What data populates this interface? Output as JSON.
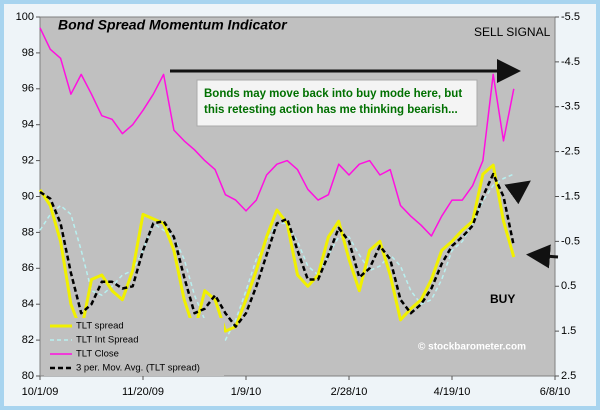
{
  "chart_data": {
    "type": "line",
    "title": "Bond Spread Momentum Indicator",
    "annotations": [
      "SELL SIGNAL",
      "BUY",
      "Bonds may move back into buy mode here, but",
      "this retesting action has me thinking bearish...",
      "© stockbarometer.com"
    ],
    "x": [
      0,
      5,
      10,
      15,
      20,
      25,
      30,
      35,
      40,
      45,
      50,
      55,
      60,
      65,
      70,
      75,
      80,
      85,
      90,
      95,
      100,
      105,
      110,
      115,
      120,
      125,
      130,
      135,
      140,
      145,
      150,
      155,
      160,
      165,
      170,
      175,
      180,
      185,
      190,
      195,
      200,
      205,
      210,
      215,
      220,
      225,
      230
    ],
    "xlim": [
      0,
      250
    ],
    "xticks": [
      {
        "value": 0,
        "label": "10/1/09"
      },
      {
        "value": 50,
        "label": "11/20/09"
      },
      {
        "value": 100,
        "label": "1/9/10"
      },
      {
        "value": 150,
        "label": "2/28/10"
      },
      {
        "value": 200,
        "label": "4/19/10"
      },
      {
        "value": 250,
        "label": "6/8/10"
      }
    ],
    "ylim": [
      80,
      100
    ],
    "yticks": [
      80,
      82,
      84,
      86,
      88,
      90,
      92,
      94,
      96,
      98,
      100
    ],
    "y2lim": [
      2.5,
      -5.5
    ],
    "y2ticks": [
      2.5,
      1.5,
      0.5,
      -0.5,
      -1.5,
      -2.5,
      -3.5,
      -4.5,
      -5.5
    ],
    "series": [
      {
        "name": "TLT spread",
        "color": "#f0f000",
        "axis": "y2",
        "values": [
          -1.65,
          -1.3,
          -0.5,
          0.9,
          1.5,
          0.35,
          0.25,
          0.6,
          0.8,
          0.15,
          -1.1,
          -1.0,
          -0.9,
          -0.3,
          0.8,
          1.5,
          0.6,
          0.8,
          1.5,
          1.4,
          0.8,
          0.15,
          -0.6,
          -1.2,
          -0.9,
          0.25,
          0.5,
          0.25,
          -0.6,
          -0.95,
          -0.1,
          0.6,
          -0.3,
          -0.5,
          0.25,
          1.25,
          1.0,
          0.8,
          0.35,
          -0.3,
          -0.5,
          -0.75,
          -0.95,
          -2.0,
          -2.2,
          -0.95,
          -0.15
        ]
      },
      {
        "name": "TLT Int Spread",
        "color": "#b8f0f0",
        "axis": "y2",
        "values": [
          -0.75,
          -1.1,
          -1.3,
          -1.1,
          -0.3,
          0.6,
          0.7,
          0.5,
          0.25,
          0.15,
          -0.3,
          -0.9,
          -0.75,
          -0.6,
          -0.1,
          0.7,
          1.25,
          1.6,
          1.7,
          1.25,
          0.6,
          -0.1,
          -0.5,
          -0.9,
          -0.9,
          -0.5,
          0.05,
          0.25,
          -0.2,
          -0.6,
          -0.6,
          -0.2,
          0.15,
          0.05,
          -0.2,
          0.05,
          0.6,
          0.9,
          0.8,
          0.35,
          -0.3,
          -0.5,
          -0.9,
          -1.4,
          -1.75,
          -1.9,
          -2.0
        ]
      },
      {
        "name": "TLT Close",
        "color": "#ff10e0",
        "axis": "y",
        "values": [
          99.4,
          98.2,
          97.7,
          95.7,
          96.8,
          95.7,
          94.5,
          94.3,
          93.5,
          94.0,
          94.8,
          95.7,
          96.8,
          93.7,
          93.1,
          92.6,
          92.0,
          91.5,
          90.1,
          89.8,
          89.2,
          89.8,
          91.2,
          91.8,
          92.0,
          91.5,
          90.4,
          89.8,
          90.1,
          91.8,
          91.2,
          91.8,
          92.0,
          91.2,
          91.5,
          89.5,
          88.9,
          88.4,
          87.8,
          88.9,
          89.8,
          89.8,
          90.6,
          92.0,
          96.8,
          93.1,
          96.0
        ]
      },
      {
        "name": "3 per. Mov. Avg. (TLT spread)",
        "color": "#000000",
        "axis": "y2",
        "values": [
          -1.6,
          -1.45,
          -0.9,
          0.2,
          1.1,
          0.9,
          0.4,
          0.4,
          0.55,
          0.5,
          -0.3,
          -0.9,
          -0.95,
          -0.6,
          0.3,
          1.1,
          1.0,
          0.7,
          1.1,
          1.4,
          1.1,
          0.5,
          -0.2,
          -0.9,
          -1.0,
          -0.3,
          0.35,
          0.35,
          -0.2,
          -0.8,
          -0.5,
          0.3,
          0.1,
          -0.4,
          -0.1,
          0.8,
          1.1,
          0.9,
          0.55,
          0.0,
          -0.4,
          -0.6,
          -0.85,
          -1.5,
          -2.0,
          -1.5,
          -0.4
        ]
      }
    ]
  }
}
